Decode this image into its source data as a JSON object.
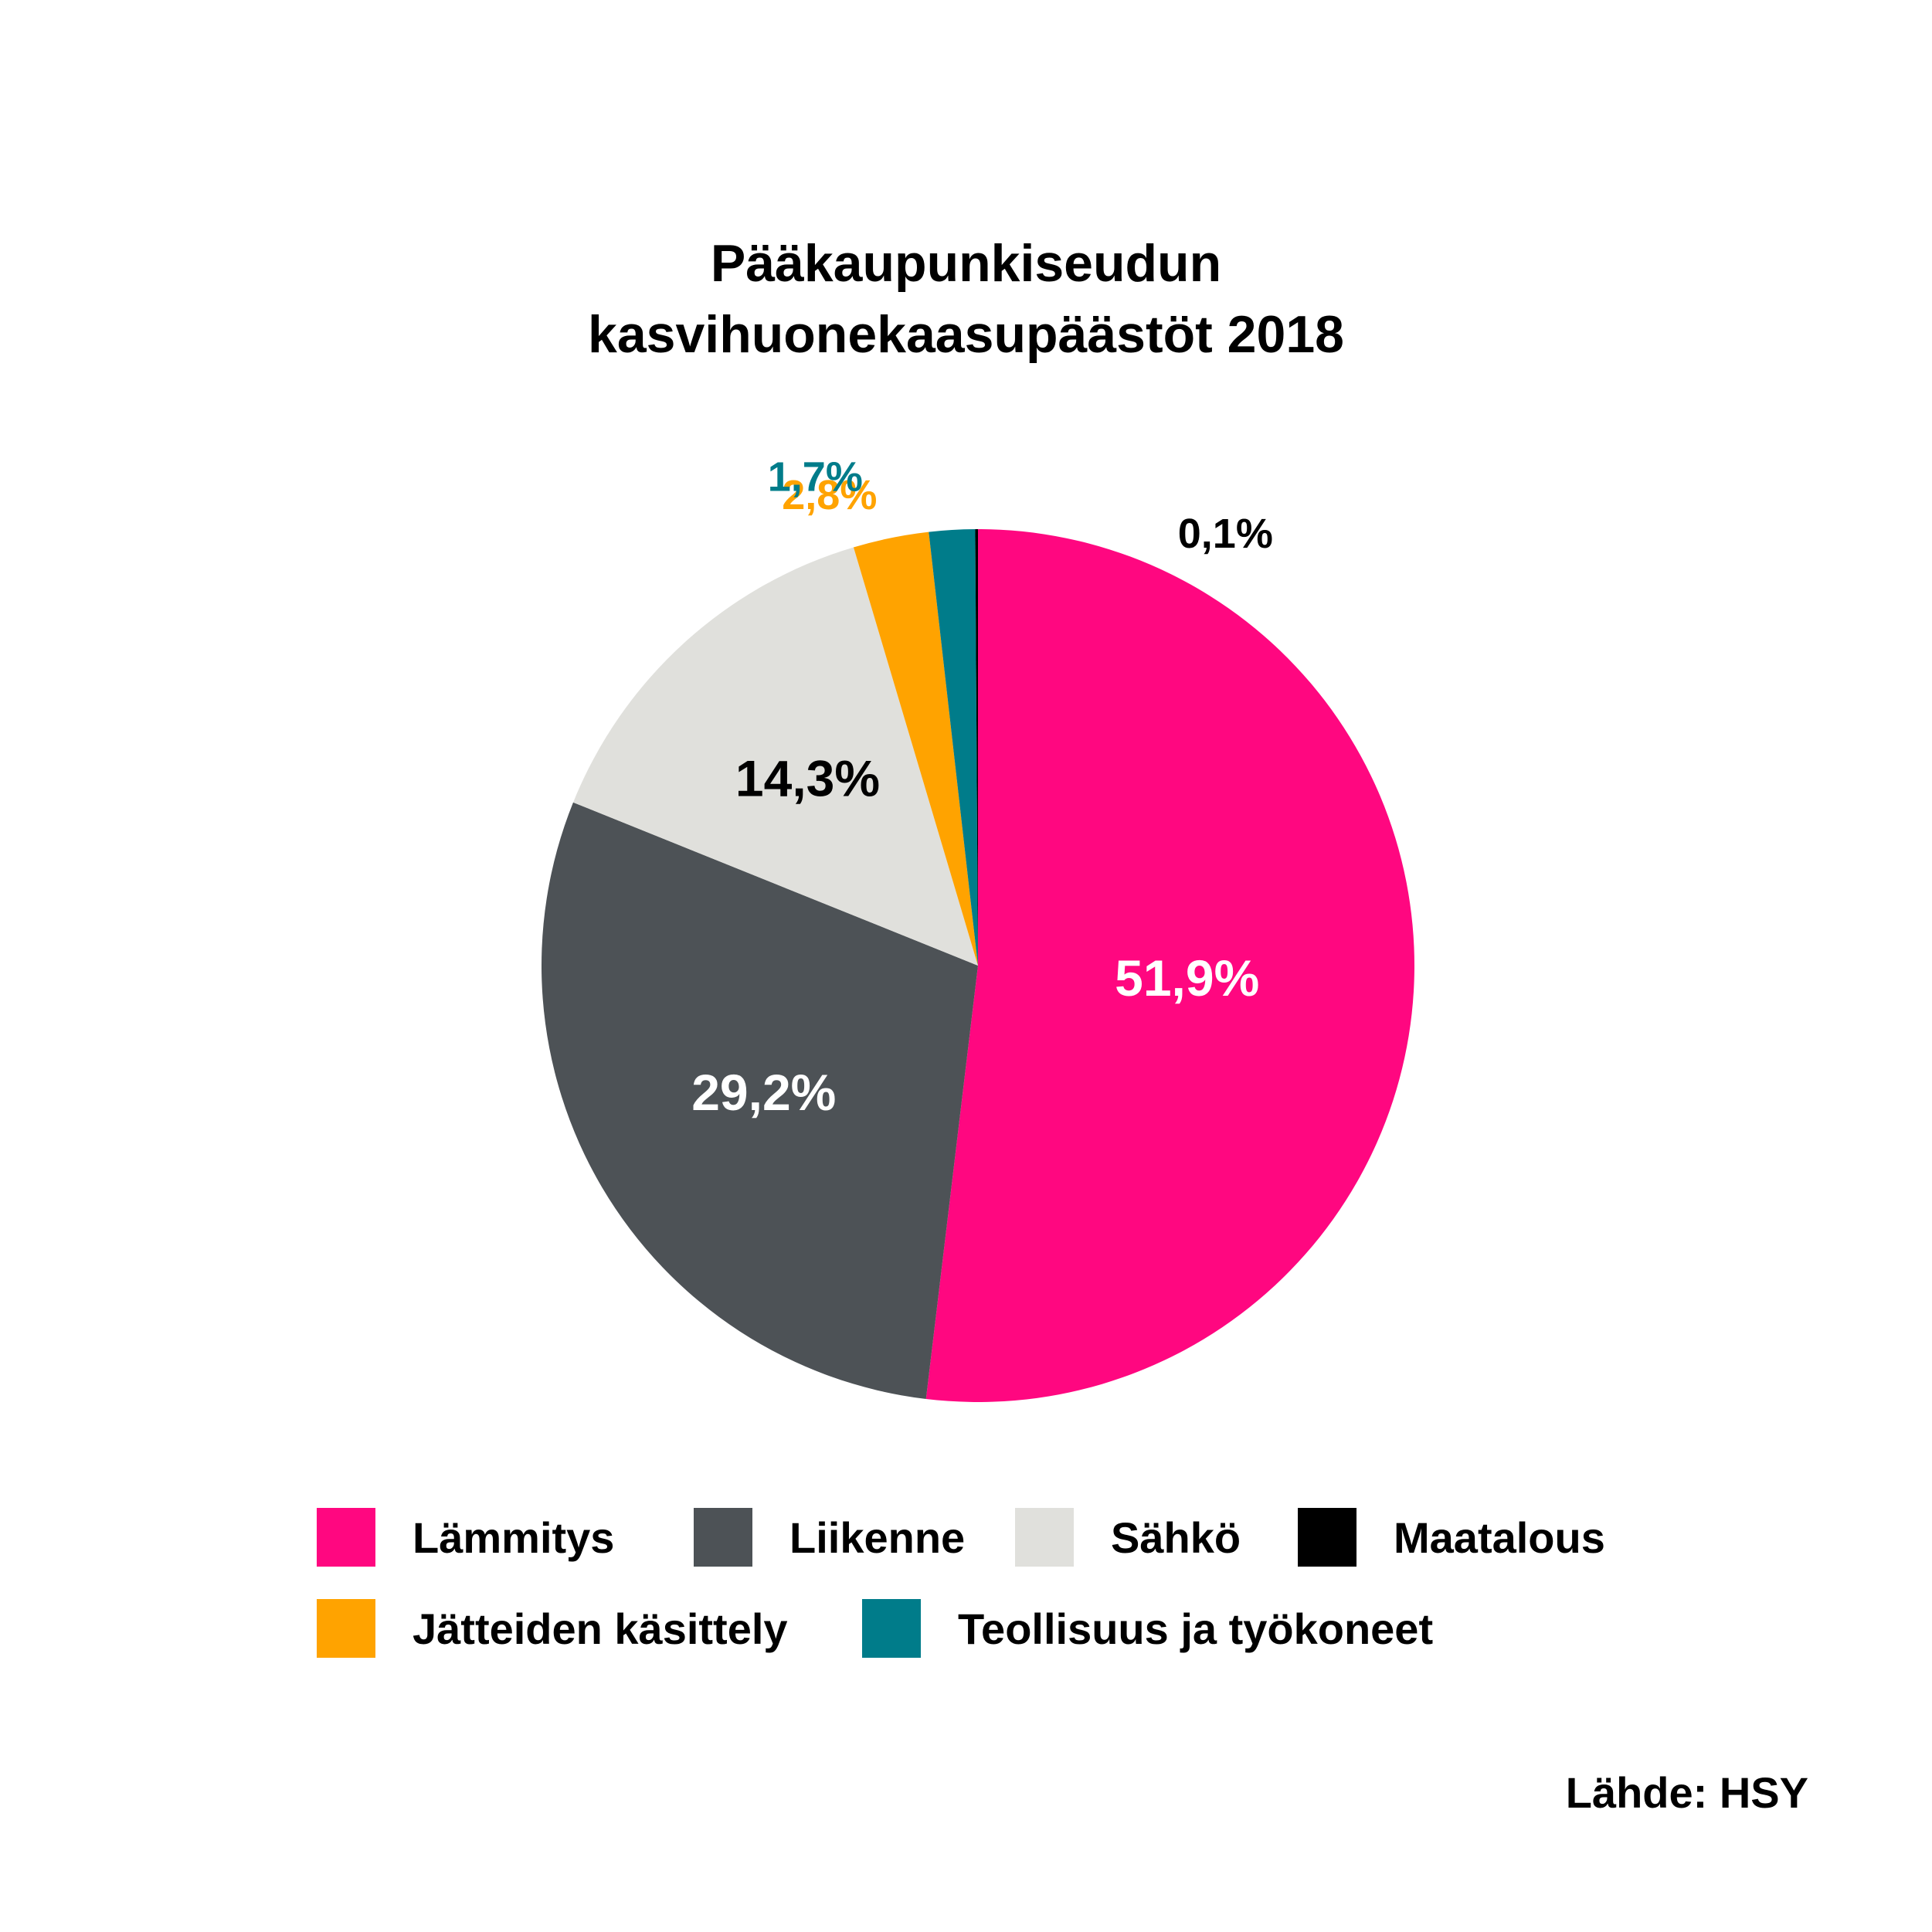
{
  "chart_data": {
    "type": "pie",
    "title_lines": [
      "Pääkaupunkiseudun",
      "kasvihuonekaasupäästöt 2018"
    ],
    "slices": [
      {
        "name": "Lämmitys",
        "value": 51.9,
        "label": "51,9%",
        "color": "#ff0780",
        "label_color": "#ffffff"
      },
      {
        "name": "Liikenne",
        "value": 29.2,
        "label": "29,2%",
        "color": "#4d5256",
        "label_color": "#ffffff"
      },
      {
        "name": "Sähkö",
        "value": 14.3,
        "label": "14,3%",
        "color": "#e0e0dc",
        "label_color": "#000000"
      },
      {
        "name": "Jätteiden käsittely",
        "value": 2.8,
        "label": "2,8%",
        "color": "#ffa300",
        "label_color": "#ffa300"
      },
      {
        "name": "Teollisuus ja työkoneet",
        "value": 1.7,
        "label": "1,7%",
        "color": "#007c8a",
        "label_color": "#007c8a"
      },
      {
        "name": "Maatalous",
        "value": 0.1,
        "label": "0,1%",
        "color": "#000000",
        "label_color": "#000000"
      }
    ],
    "legend": {
      "position": "bottom",
      "items": [
        {
          "label": "Lämmitys",
          "color": "#ff0780"
        },
        {
          "label": "Liikenne",
          "color": "#4d5256"
        },
        {
          "label": "Sähkö",
          "color": "#e0e0dc"
        },
        {
          "label": "Maatalous",
          "color": "#000000"
        },
        {
          "label": "Jätteiden käsittely",
          "color": "#ffa300"
        },
        {
          "label": "Teollisuus ja työkoneet",
          "color": "#007c8a"
        }
      ]
    },
    "source": "Lähde: HSY"
  }
}
